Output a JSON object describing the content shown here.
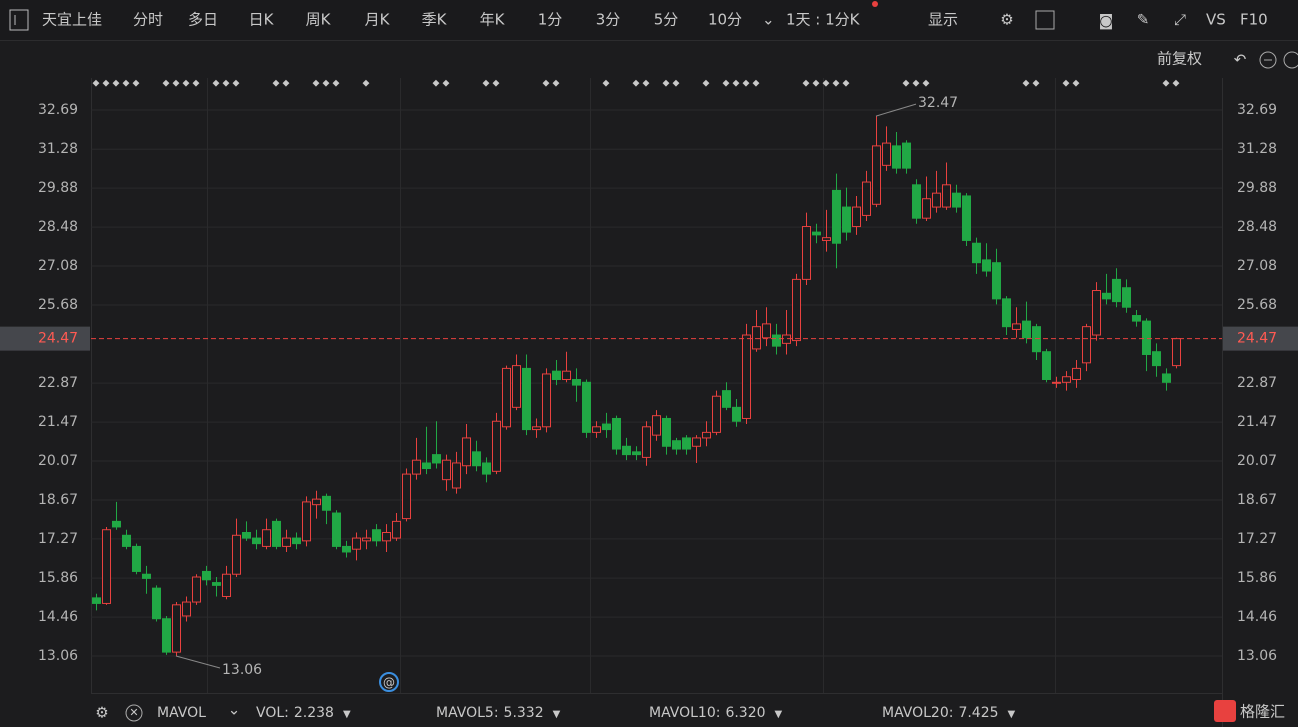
{
  "toolbar": {
    "stock": "天宜上佳",
    "tabs": [
      "分时",
      "多日",
      "日K",
      "周K",
      "月K",
      "季K",
      "年K",
      "1分",
      "3分",
      "5分",
      "10分"
    ],
    "period": "1天 : 1分K",
    "display": "显示",
    "vs": "VS",
    "f10": "F10",
    "adjust": "前复权"
  },
  "chart_data": {
    "type": "candlestick",
    "up_color": "#e8413f",
    "down_color": "#21a845",
    "ylim": [
      11.73,
      33.84
    ],
    "yticks": [
      32.69,
      31.28,
      29.88,
      28.48,
      27.08,
      25.68,
      22.87,
      21.47,
      20.07,
      18.67,
      17.27,
      15.86,
      14.46,
      13.06
    ],
    "open": [
      15.15,
      14.95,
      17.9,
      17.4,
      17.0,
      16.0,
      15.5,
      14.4,
      13.2,
      14.5,
      15.0,
      16.1,
      15.7,
      15.2,
      16.0,
      17.5,
      17.3,
      17.0,
      17.9,
      17.0,
      17.3,
      17.2,
      18.5,
      18.8,
      18.2,
      17.0,
      16.9,
      17.2,
      17.6,
      17.2,
      17.3,
      18.0,
      19.6,
      20.0,
      20.3,
      19.4,
      19.1,
      19.9,
      20.4,
      20.0,
      19.7,
      21.3,
      22.0,
      23.4,
      21.2,
      21.3,
      23.3,
      23.0,
      23.0,
      22.9,
      21.1,
      21.4,
      21.6,
      20.6,
      20.4,
      20.2,
      21.0,
      21.6,
      20.8,
      20.9,
      20.6,
      20.9,
      21.1,
      22.6,
      22.0,
      21.6,
      24.1,
      24.5,
      24.6,
      24.3,
      24.4,
      26.6,
      28.3,
      28.0,
      29.8,
      29.2,
      28.5,
      28.9,
      29.3,
      30.7,
      31.4,
      31.5,
      30.0,
      28.8,
      29.2,
      29.2,
      29.7,
      29.6,
      27.9,
      27.3,
      27.2,
      25.9,
      24.8,
      25.1,
      24.9,
      24.0,
      22.9,
      22.9,
      23.0,
      23.6,
      24.6,
      26.1,
      26.6,
      26.3,
      25.3,
      25.1,
      24.0,
      23.2,
      23.5
    ],
    "high": [
      15.3,
      17.7,
      18.6,
      17.6,
      17.1,
      16.3,
      15.6,
      14.5,
      15.0,
      15.2,
      16.0,
      16.3,
      15.9,
      16.3,
      18.0,
      17.9,
      17.6,
      18.0,
      18.0,
      17.6,
      17.5,
      18.8,
      19.0,
      18.9,
      18.3,
      17.2,
      17.5,
      17.6,
      17.8,
      17.8,
      18.2,
      19.8,
      20.9,
      21.3,
      21.5,
      20.3,
      20.4,
      21.4,
      20.8,
      20.2,
      21.8,
      23.5,
      23.9,
      23.9,
      21.6,
      23.4,
      23.7,
      24.0,
      23.4,
      23.0,
      21.5,
      21.8,
      21.7,
      20.9,
      20.6,
      21.5,
      21.9,
      21.7,
      20.9,
      21.0,
      21.0,
      21.5,
      22.6,
      22.9,
      22.3,
      25.0,
      25.5,
      25.6,
      25.0,
      25.5,
      26.8,
      29.0,
      28.6,
      29.1,
      30.4,
      29.9,
      29.6,
      30.5,
      32.47,
      32.1,
      31.9,
      31.6,
      30.2,
      30.3,
      30.5,
      30.8,
      30.0,
      29.7,
      28.1,
      27.9,
      27.7,
      26.0,
      25.6,
      25.8,
      25.0,
      24.1,
      23.1,
      23.3,
      23.7,
      25.0,
      26.5,
      26.8,
      27.0,
      26.6,
      25.5,
      25.2,
      24.3,
      23.4,
      24.5
    ],
    "low": [
      14.7,
      14.9,
      17.6,
      16.9,
      16.0,
      15.3,
      14.3,
      13.1,
      13.06,
      14.3,
      14.9,
      15.6,
      15.2,
      15.1,
      15.9,
      17.2,
      16.9,
      16.9,
      16.9,
      16.8,
      16.9,
      17.0,
      18.0,
      17.8,
      16.9,
      16.6,
      16.5,
      16.9,
      17.0,
      16.8,
      17.2,
      17.9,
      19.4,
      19.6,
      19.8,
      19.0,
      18.9,
      19.6,
      19.7,
      19.3,
      19.6,
      21.2,
      21.9,
      21.0,
      20.9,
      21.1,
      22.8,
      22.9,
      22.2,
      20.9,
      20.9,
      20.9,
      20.3,
      20.1,
      20.1,
      19.9,
      20.8,
      20.3,
      20.3,
      20.3,
      20.0,
      20.6,
      21.0,
      21.9,
      21.3,
      21.4,
      24.0,
      24.2,
      23.9,
      23.9,
      24.2,
      26.4,
      27.9,
      27.6,
      27.0,
      28.0,
      28.2,
      28.7,
      29.2,
      30.5,
      30.4,
      30.4,
      28.6,
      28.7,
      29.0,
      29.1,
      29.0,
      27.8,
      26.8,
      26.7,
      25.7,
      24.6,
      24.5,
      24.3,
      23.7,
      22.9,
      22.7,
      22.6,
      22.7,
      23.3,
      24.4,
      25.7,
      25.6,
      25.4,
      24.9,
      23.3,
      23.1,
      22.6,
      23.4
    ],
    "close": [
      14.95,
      17.6,
      17.7,
      17.0,
      16.1,
      15.85,
      14.4,
      13.2,
      14.9,
      15.0,
      15.9,
      15.8,
      15.6,
      16.0,
      17.4,
      17.3,
      17.1,
      17.6,
      17.0,
      17.3,
      17.1,
      18.6,
      18.7,
      18.3,
      17.0,
      16.8,
      17.3,
      17.3,
      17.2,
      17.5,
      17.9,
      19.6,
      20.1,
      19.8,
      20.0,
      20.1,
      20.0,
      20.9,
      19.9,
      19.6,
      21.5,
      23.4,
      23.5,
      21.2,
      21.3,
      23.2,
      23.0,
      23.3,
      22.8,
      21.1,
      21.3,
      21.2,
      20.5,
      20.3,
      20.3,
      21.3,
      21.7,
      20.6,
      20.5,
      20.5,
      20.9,
      21.1,
      22.4,
      22.0,
      21.5,
      24.6,
      24.9,
      25.0,
      24.2,
      24.6,
      26.6,
      28.5,
      28.2,
      28.1,
      27.9,
      28.3,
      29.2,
      30.1,
      31.4,
      31.5,
      30.6,
      30.6,
      28.8,
      29.5,
      29.7,
      30.0,
      29.2,
      28.0,
      27.2,
      26.9,
      25.9,
      24.9,
      25.0,
      24.5,
      24.0,
      23.0,
      22.9,
      23.1,
      23.4,
      24.9,
      26.2,
      25.9,
      25.8,
      25.6,
      25.1,
      23.9,
      23.5,
      22.9,
      24.47
    ],
    "indicator": "MAVOL",
    "indicators": [
      {
        "name": "VOL:",
        "value": 2.238,
        "color": "#e8413f"
      },
      {
        "name": "MAVOL5:",
        "value": 5.332,
        "color": "#f08a3c"
      },
      {
        "name": "MAVOL10:",
        "value": 6.32,
        "value_label": "6.320",
        "color": "#2fa8e0"
      },
      {
        "name": "MAVOL20:",
        "value": 7.425,
        "color": "#d86fd8"
      }
    ],
    "logo": "格隆汇"
  }
}
